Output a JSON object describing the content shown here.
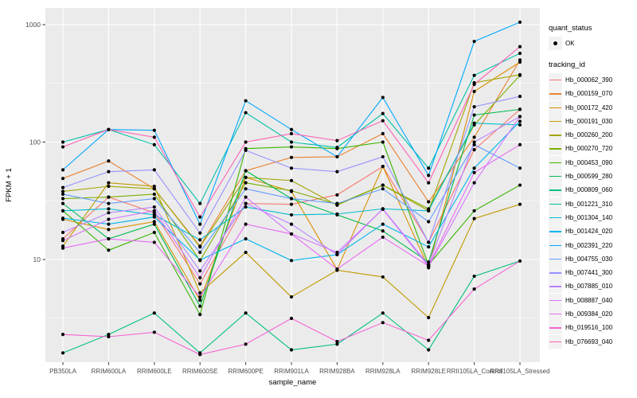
{
  "figure": {
    "background": "#FFFFFF",
    "panel_background": "#EBEBEB",
    "grid_major_color": "#FFFFFF",
    "grid_minor_color": "#FFFFFF",
    "tick_color": "#333333",
    "tick_label_color": "#4D4D4D",
    "axis_title_color": "#000000",
    "point_color": "#000000",
    "legend_key_background": "#F2F2F2"
  },
  "axes": {
    "x_title": "sample_name",
    "y_title": "FPKM + 1",
    "y_tick_labels": [
      "10",
      "100",
      "1000"
    ],
    "y_tick_values": [
      10,
      100,
      1000
    ],
    "y_minor_values": [
      3.162,
      31.62,
      316.2
    ]
  },
  "legend": {
    "quant_status_title": "quant_status",
    "quant_status_ok_label": "OK",
    "tracking_id_title": "tracking_id"
  },
  "chart_data": {
    "type": "line",
    "title": "",
    "xlabel": "sample_name",
    "ylabel": "FPKM + 1",
    "y_scale": "log10",
    "ylim": [
      1.33,
      1390
    ],
    "grid": true,
    "legend_position": "right",
    "point_marker": "black dot (quant_status OK)",
    "categories": [
      "PB350LA",
      "RRIM600LA",
      "RRIM600LE",
      "RRIM600SE",
      "RRIM600PE",
      "RRIM901LA",
      "RRIM928BA",
      "RRIM928LA",
      "RRIM928LE",
      "RRII105LA_Control",
      "RRII105LA_Stressed"
    ],
    "series": [
      {
        "name": "Hb_000062_390",
        "color": "#F8766D",
        "values": [
          15,
          34,
          25,
          6.2,
          30,
          29.5,
          35.5,
          62,
          14,
          86,
          190
        ]
      },
      {
        "name": "Hb_000159_070",
        "color": "#EA8331",
        "values": [
          49,
          69,
          40,
          13,
          57,
          74,
          75,
          118,
          31,
          110,
          500
        ]
      },
      {
        "name": "Hb_000172_420",
        "color": "#D89000",
        "values": [
          22,
          18,
          21,
          4.5,
          50,
          38,
          8.2,
          62,
          8.5,
          270,
          480
        ]
      },
      {
        "name": "Hb_000191_030",
        "color": "#C09B00",
        "values": [
          13,
          45,
          42,
          5.2,
          11.5,
          4.8,
          8.1,
          7.1,
          3.2,
          22.3,
          29.5
        ]
      },
      {
        "name": "Hb_000260_200",
        "color": "#A3A500",
        "values": [
          38,
          42,
          40,
          12.8,
          50,
          47,
          29,
          43,
          26,
          320,
          375
        ]
      },
      {
        "name": "Hb_000270_720",
        "color": "#7CAE00",
        "values": [
          33,
          34,
          36,
          9.8,
          45,
          38.5,
          29.5,
          43,
          27,
          140,
          370
        ]
      },
      {
        "name": "Hb_000453_090",
        "color": "#39B600",
        "values": [
          26,
          12,
          17,
          3.4,
          88,
          91,
          88,
          100,
          9,
          26,
          43
        ]
      },
      {
        "name": "Hb_000599_280",
        "color": "#00BB4E",
        "values": [
          30,
          15,
          20,
          4.0,
          57,
          33,
          24,
          17.5,
          9.5,
          170,
          190
        ]
      },
      {
        "name": "Hb_000809_060",
        "color": "#00BF7D",
        "values": [
          1.6,
          2.3,
          3.5,
          1.6,
          3.5,
          1.7,
          1.9,
          3.5,
          1.7,
          7.2,
          9.7
        ]
      },
      {
        "name": "Hb_001221_310",
        "color": "#00C1A7",
        "values": [
          100,
          128,
          95,
          30,
          178,
          100,
          90,
          175,
          60,
          370,
          570
        ]
      },
      {
        "name": "Hb_001304_140",
        "color": "#00BDD0",
        "values": [
          26,
          27,
          24,
          14.7,
          28,
          24,
          24.4,
          27,
          26,
          145,
          140
        ]
      },
      {
        "name": "Hb_001424_020",
        "color": "#00B5EE",
        "values": [
          22.5,
          20,
          23,
          9.9,
          15,
          9.8,
          11,
          20,
          12.8,
          60,
          150
        ]
      },
      {
        "name": "Hb_002391_220",
        "color": "#00A9FF",
        "values": [
          58,
          128,
          126,
          20,
          225,
          128,
          75,
          240,
          52,
          720,
          1050
        ]
      },
      {
        "name": "Hb_004755_030",
        "color": "#619CFF",
        "values": [
          36,
          30,
          33,
          11.5,
          40,
          33,
          30,
          40,
          21,
          95,
          60
        ]
      },
      {
        "name": "Hb_007441_300",
        "color": "#9590FF",
        "values": [
          41,
          56,
          58,
          16.8,
          85,
          60,
          56,
          75,
          14,
          200,
          245
        ]
      },
      {
        "name": "Hb_007885_010",
        "color": "#B983FF",
        "values": [
          17,
          25,
          28,
          8.0,
          30,
          20,
          11,
          27,
          9.0,
          100,
          165
        ]
      },
      {
        "name": "Hb_008887_040",
        "color": "#D376FF",
        "values": [
          14.5,
          22,
          26,
          7.0,
          34,
          16.5,
          11.5,
          26.8,
          8.7,
          45,
          165
        ]
      },
      {
        "name": "Hb_009384_020",
        "color": "#E76BF3",
        "values": [
          12.5,
          15,
          14,
          4.8,
          20,
          16.5,
          8.3,
          15.5,
          8.8,
          55,
          95
        ]
      },
      {
        "name": "Hb_019516_100",
        "color": "#F564D4",
        "values": [
          2.3,
          2.2,
          2.4,
          1.55,
          1.9,
          3.15,
          2.0,
          2.9,
          2.05,
          5.6,
          9.7
        ]
      },
      {
        "name": "Hb_076693_040",
        "color": "#FD61B6",
        "values": [
          91,
          128,
          110,
          23,
          100,
          118,
          103,
          152,
          45,
          310,
          650
        ]
      }
    ]
  }
}
